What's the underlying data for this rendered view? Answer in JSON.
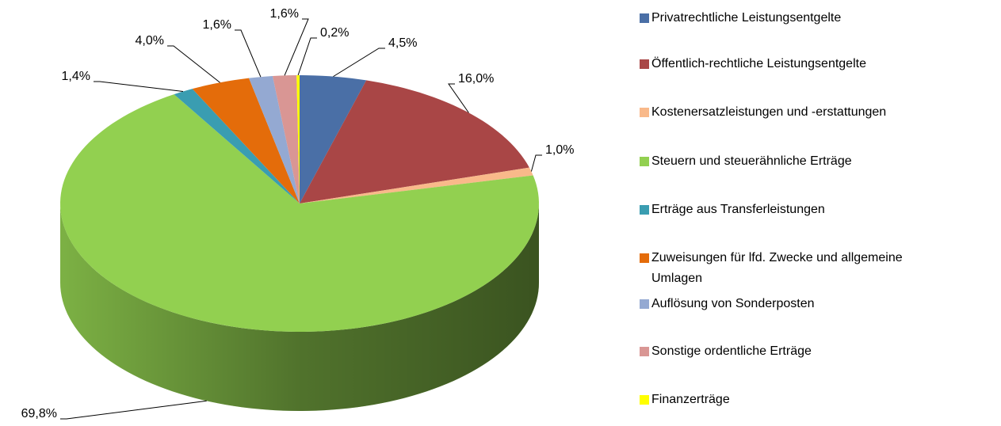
{
  "chart_data": {
    "type": "pie",
    "categories": [
      "Privatrechtliche Leistungsentgelte",
      "Öffentlich-rechtliche Leistungsentgelte",
      "Kostenersatzleistungen und -erstattungen",
      "Steuern und steuerähnliche Erträge",
      "Erträge aus Transferleistungen",
      "Zuweisungen für lfd. Zwecke und allgemeine Umlagen",
      "Auflösung von Sonderposten",
      "Sonstige ordentliche Erträge",
      "Finanzerträge"
    ],
    "values": [
      4.5,
      16.0,
      1.0,
      69.8,
      1.4,
      4.0,
      1.6,
      1.6,
      0.2
    ],
    "value_labels": [
      "4,5%",
      "16,0%",
      "1,0%",
      "69,8%",
      "1,4%",
      "4,0%",
      "1,6%",
      "1,6%",
      "0,2%"
    ],
    "colors": [
      "#4a6fa6",
      "#a94646",
      "#f9b98a",
      "#92d050",
      "#3a9db1",
      "#e46c0a",
      "#94a9d2",
      "#d99694",
      "#ffff00"
    ],
    "legend": "right"
  }
}
